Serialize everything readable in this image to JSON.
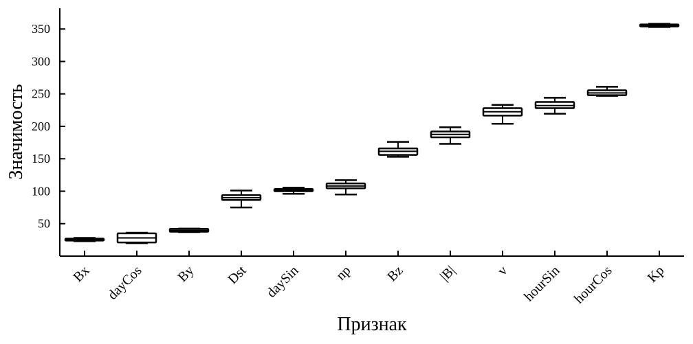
{
  "chart_data": {
    "type": "box",
    "title": "",
    "xlabel": "Признак",
    "ylabel": "Значимость",
    "ylim": [
      0,
      382
    ],
    "yticks": [
      50,
      100,
      150,
      200,
      250,
      300,
      350
    ],
    "grid": false,
    "categories": [
      "Bx",
      "dayCos",
      "By",
      "Dst",
      "daySin",
      "np",
      "Bz",
      "|B|",
      "v",
      "hourSin",
      "hourCos",
      "Kp"
    ],
    "boxes": [
      {
        "min": 23,
        "q1": 24,
        "median": 25.5,
        "q3": 27,
        "max": 28
      },
      {
        "min": 20,
        "q1": 21,
        "median": 28,
        "q3": 35,
        "max": 36
      },
      {
        "min": 37,
        "q1": 37.5,
        "median": 39.5,
        "q3": 42,
        "max": 42.5
      },
      {
        "min": 75,
        "q1": 86.5,
        "median": 90,
        "q3": 94,
        "max": 101
      },
      {
        "min": 96,
        "q1": 100,
        "median": 101.5,
        "q3": 103.5,
        "max": 105.5
      },
      {
        "min": 95,
        "q1": 104.5,
        "median": 108,
        "q3": 112,
        "max": 117
      },
      {
        "min": 153,
        "q1": 156,
        "median": 161.5,
        "q3": 166,
        "max": 176
      },
      {
        "min": 173,
        "q1": 183,
        "median": 187.5,
        "q3": 192,
        "max": 198.5
      },
      {
        "min": 204,
        "q1": 216.5,
        "median": 222.5,
        "q3": 228,
        "max": 233
      },
      {
        "min": 219.5,
        "q1": 228,
        "median": 232,
        "q3": 237.5,
        "max": 244
      },
      {
        "min": 247,
        "q1": 248,
        "median": 251.5,
        "q3": 255.5,
        "max": 261
      },
      {
        "min": 353,
        "q1": 354,
        "median": 355.5,
        "q3": 357,
        "max": 358
      }
    ],
    "color": "#000000"
  }
}
